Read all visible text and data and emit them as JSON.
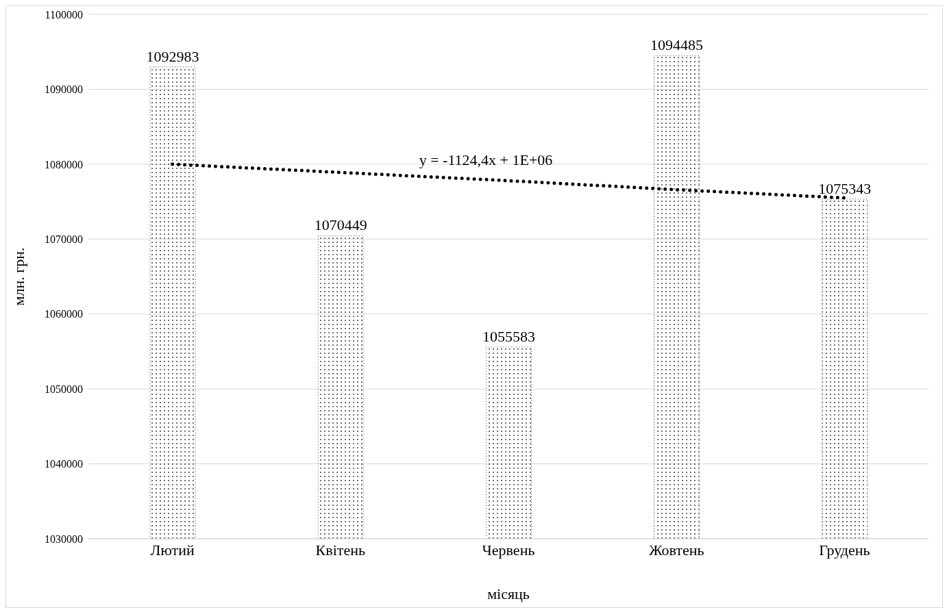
{
  "chart_data": {
    "type": "bar",
    "xlabel": "місяць",
    "ylabel": "млн. грн.",
    "categories": [
      "Лютий",
      "Квітень",
      "Червень",
      "Жовтень",
      "Грудень"
    ],
    "series": [
      {
        "color": "#404040",
        "values": [
          1092983,
          1070449,
          1055583,
          1094485,
          1075343
        ],
        "value_labels": [
          "1092983",
          "1070449",
          "1055583",
          "1094485",
          "1075343"
        ]
      },
      {
        "type": "line",
        "color": "#000000",
        "line_style": "dotted",
        "x": [
          "Лютий",
          "Квітень",
          "Червень",
          "Жовтень",
          "Грудень"
        ],
        "values": [
          1080000,
          1078900,
          1077800,
          1076600,
          1075500
        ]
      }
    ],
    "ylim": [
      1030000,
      1100000
    ],
    "yticks": [
      1030000,
      1040000,
      1050000,
      1060000,
      1070000,
      1080000,
      1090000,
      1100000
    ],
    "grid": "y",
    "legend": false,
    "annotations": [
      "y = -1124,4x + 1E+06"
    ]
  }
}
